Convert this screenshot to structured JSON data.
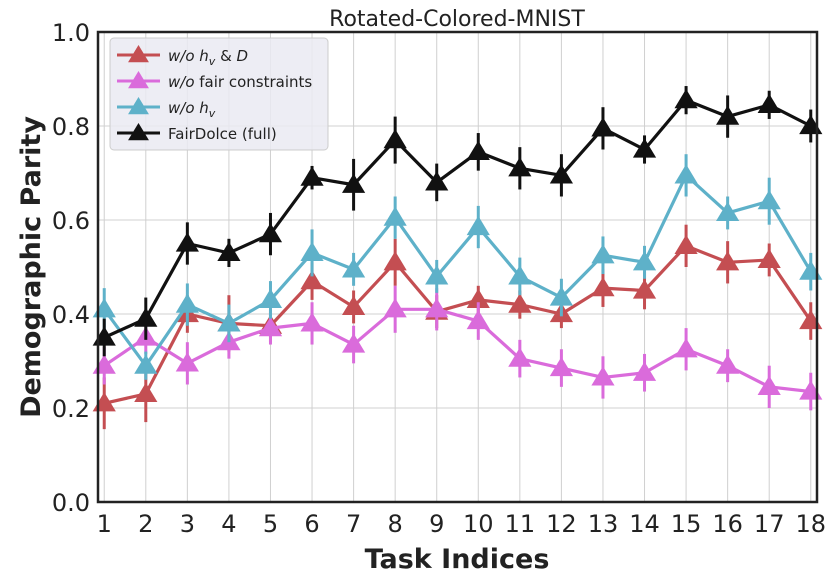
{
  "chart_data": {
    "type": "line",
    "title": "Rotated-Colored-MNIST",
    "xlabel": "Task Indices",
    "ylabel": "Demographic Parity",
    "ylim": [
      0.0,
      1.0
    ],
    "yticks": [
      "0.0",
      "0.2",
      "0.4",
      "0.6",
      "0.8",
      "1.0"
    ],
    "x": [
      1,
      2,
      3,
      4,
      5,
      6,
      7,
      8,
      9,
      10,
      11,
      12,
      13,
      14,
      15,
      16,
      17,
      18
    ],
    "xticks": [
      "1",
      "2",
      "3",
      "4",
      "5",
      "6",
      "7",
      "8",
      "9",
      "10",
      "11",
      "12",
      "13",
      "14",
      "15",
      "16",
      "17",
      "18"
    ],
    "grid": true,
    "legend_position": "top-left",
    "series": [
      {
        "key": "no-hv-d",
        "legend": {
          "prefix": "w/o h",
          "sub": "v",
          "suffix": " & D",
          "italic_suffix": "D"
        },
        "color": "#c44e52",
        "values": [
          0.21,
          0.23,
          0.4,
          0.38,
          0.375,
          0.47,
          0.415,
          0.51,
          0.405,
          0.43,
          0.42,
          0.4,
          0.455,
          0.45,
          0.545,
          0.51,
          0.515,
          0.385
        ],
        "errors": [
          0.055,
          0.06,
          0.04,
          0.06,
          0.035,
          0.04,
          0.035,
          0.05,
          0.035,
          0.03,
          0.03,
          0.03,
          0.04,
          0.04,
          0.045,
          0.045,
          0.035,
          0.04
        ]
      },
      {
        "key": "no-fair",
        "legend": {
          "prefix": "w/o",
          "suffix": " fair constraints"
        },
        "color": "#da6bdb",
        "values": [
          0.29,
          0.35,
          0.295,
          0.34,
          0.37,
          0.38,
          0.335,
          0.41,
          0.41,
          0.385,
          0.305,
          0.285,
          0.265,
          0.275,
          0.325,
          0.29,
          0.245,
          0.235
        ],
        "errors": [
          0.04,
          0.035,
          0.045,
          0.035,
          0.035,
          0.045,
          0.04,
          0.05,
          0.045,
          0.04,
          0.04,
          0.04,
          0.045,
          0.04,
          0.045,
          0.035,
          0.045,
          0.04
        ]
      },
      {
        "key": "no-hv",
        "legend": {
          "prefix": "w/o h",
          "sub": "v"
        },
        "color": "#5eb1c9",
        "values": [
          0.41,
          0.29,
          0.42,
          0.38,
          0.43,
          0.53,
          0.495,
          0.605,
          0.48,
          0.585,
          0.48,
          0.435,
          0.525,
          0.51,
          0.695,
          0.615,
          0.64,
          0.49
        ],
        "errors": [
          0.045,
          0.03,
          0.045,
          0.04,
          0.04,
          0.05,
          0.035,
          0.045,
          0.035,
          0.045,
          0.04,
          0.04,
          0.04,
          0.035,
          0.045,
          0.035,
          0.05,
          0.04
        ]
      },
      {
        "key": "fairdolce",
        "legend": {
          "prefix": "FairDolce (full)"
        },
        "color": "#111111",
        "values": [
          0.35,
          0.39,
          0.55,
          0.53,
          0.57,
          0.69,
          0.675,
          0.77,
          0.68,
          0.745,
          0.71,
          0.695,
          0.795,
          0.75,
          0.855,
          0.82,
          0.845,
          0.8
        ],
        "errors": [
          0.04,
          0.045,
          0.045,
          0.03,
          0.045,
          0.025,
          0.055,
          0.05,
          0.04,
          0.04,
          0.045,
          0.045,
          0.045,
          0.03,
          0.03,
          0.045,
          0.03,
          0.035
        ]
      }
    ]
  }
}
